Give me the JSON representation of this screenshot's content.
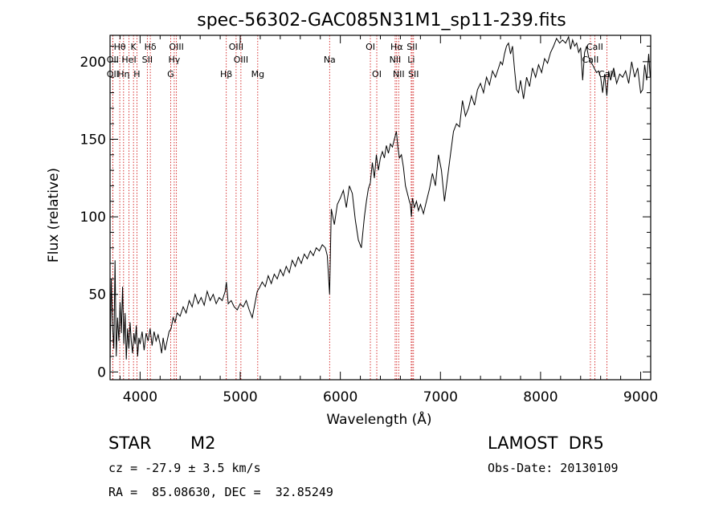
{
  "chart_data": {
    "type": "line",
    "title": "spec-56302-GAC085N31M1_sp11-239.fits",
    "xlabel": "Wavelength (Å)",
    "ylabel": "Flux (relative)",
    "xlim": [
      3700,
      9100
    ],
    "ylim": [
      -5,
      217
    ],
    "xticks": [
      4000,
      5000,
      6000,
      7000,
      8000,
      9000
    ],
    "yticks": [
      0,
      50,
      100,
      150,
      200
    ],
    "grid": false,
    "line_color": "#000000",
    "marker_color": "#cc0000",
    "series": [
      {
        "x": [
          3700,
          3712,
          3725,
          3738,
          3750,
          3762,
          3775,
          3788,
          3800,
          3812,
          3825,
          3838,
          3850,
          3862,
          3875,
          3888,
          3900,
          3912,
          3925,
          3938,
          3950,
          3962,
          3975,
          3988,
          4000,
          4020,
          4040,
          4060,
          4080,
          4100,
          4120,
          4140,
          4160,
          4180,
          4200,
          4215,
          4230,
          4250,
          4270,
          4290,
          4310,
          4330,
          4350,
          4370,
          4400,
          4430,
          4460,
          4490,
          4520,
          4550,
          4580,
          4610,
          4640,
          4670,
          4700,
          4730,
          4760,
          4790,
          4820,
          4850,
          4862,
          4880,
          4910,
          4940,
          4970,
          5000,
          5030,
          5060,
          5090,
          5120,
          5150,
          5170,
          5190,
          5220,
          5250,
          5280,
          5310,
          5340,
          5370,
          5400,
          5430,
          5460,
          5490,
          5520,
          5550,
          5580,
          5610,
          5640,
          5670,
          5700,
          5730,
          5760,
          5790,
          5820,
          5850,
          5870,
          5893,
          5910,
          5940,
          5970,
          6000,
          6030,
          6060,
          6090,
          6120,
          6150,
          6180,
          6210,
          6240,
          6260,
          6280,
          6300,
          6320,
          6340,
          6360,
          6380,
          6400,
          6420,
          6440,
          6460,
          6480,
          6500,
          6520,
          6540,
          6560,
          6575,
          6590,
          6610,
          6630,
          6650,
          6670,
          6690,
          6700,
          6710,
          6720,
          6740,
          6760,
          6780,
          6800,
          6830,
          6860,
          6890,
          6920,
          6950,
          6980,
          7010,
          7040,
          7070,
          7100,
          7130,
          7160,
          7190,
          7220,
          7250,
          7280,
          7310,
          7340,
          7370,
          7400,
          7430,
          7460,
          7490,
          7520,
          7550,
          7580,
          7600,
          7620,
          7640,
          7660,
          7680,
          7700,
          7720,
          7740,
          7760,
          7780,
          7800,
          7830,
          7860,
          7890,
          7920,
          7950,
          7980,
          8010,
          8040,
          8070,
          8100,
          8130,
          8160,
          8190,
          8220,
          8250,
          8280,
          8300,
          8320,
          8340,
          8360,
          8380,
          8400,
          8420,
          8440,
          8460,
          8480,
          8500,
          8520,
          8542,
          8560,
          8580,
          8600,
          8620,
          8640,
          8662,
          8680,
          8700,
          8730,
          8760,
          8790,
          8820,
          8850,
          8880,
          8910,
          8940,
          8970,
          9000,
          9020,
          9040,
          9060,
          9080,
          9095
        ],
        "y": [
          5,
          60,
          30,
          15,
          72,
          10,
          35,
          20,
          45,
          25,
          55,
          18,
          38,
          8,
          28,
          15,
          32,
          20,
          12,
          25,
          18,
          30,
          10,
          22,
          18,
          26,
          14,
          25,
          20,
          28,
          17,
          26,
          20,
          24,
          18,
          12,
          22,
          14,
          20,
          26,
          28,
          35,
          32,
          38,
          36,
          42,
          38,
          46,
          42,
          50,
          44,
          48,
          43,
          52,
          46,
          50,
          44,
          48,
          46,
          52,
          58,
          44,
          46,
          42,
          40,
          44,
          42,
          46,
          40,
          35,
          45,
          52,
          54,
          58,
          55,
          62,
          57,
          63,
          60,
          66,
          62,
          68,
          64,
          72,
          68,
          74,
          70,
          76,
          73,
          78,
          75,
          80,
          78,
          82,
          80,
          75,
          50,
          105,
          95,
          108,
          112,
          117,
          106,
          120,
          115,
          98,
          85,
          80,
          100,
          110,
          118,
          122,
          135,
          125,
          140,
          130,
          138,
          142,
          138,
          146,
          141,
          147,
          145,
          150,
          155,
          145,
          138,
          140,
          132,
          120,
          115,
          110,
          108,
          100,
          112,
          106,
          110,
          104,
          108,
          102,
          110,
          118,
          128,
          120,
          140,
          130,
          110,
          125,
          140,
          155,
          160,
          158,
          175,
          165,
          170,
          178,
          172,
          182,
          186,
          180,
          190,
          185,
          194,
          190,
          196,
          200,
          198,
          205,
          210,
          212,
          205,
          210,
          195,
          182,
          180,
          188,
          176,
          190,
          184,
          196,
          190,
          198,
          193,
          202,
          199,
          206,
          210,
          215,
          212,
          214,
          212,
          216,
          208,
          214,
          210,
          212,
          206,
          209,
          188,
          206,
          210,
          203,
          200,
          198,
          195,
          193,
          194,
          190,
          180,
          192,
          178,
          194,
          188,
          196,
          186,
          192,
          190,
          194,
          186,
          200,
          190,
          196,
          180,
          182,
          198,
          188,
          205,
          190
        ],
        "y_range_note": null
      }
    ],
    "lines": [
      {
        "label": "Hθ",
        "x": 3797,
        "row": 0
      },
      {
        "label": "OII",
        "x": 3727,
        "row": 1
      },
      {
        "label": "OII",
        "x": 3727,
        "row": 2
      },
      {
        "label": "K",
        "x": 3934,
        "row": 0
      },
      {
        "label": "HeI",
        "x": 3889,
        "row": 1
      },
      {
        "label": "Hη",
        "x": 3835,
        "row": 2
      },
      {
        "label": "H",
        "x": 3968,
        "row": 2
      },
      {
        "label": "Hδ",
        "x": 4102,
        "row": 0
      },
      {
        "label": "SII",
        "x": 4072,
        "row": 1
      },
      {
        "label": "OIII",
        "x": 4363,
        "row": 0
      },
      {
        "label": "Hγ",
        "x": 4341,
        "row": 1
      },
      {
        "label": "G",
        "x": 4305,
        "row": 2
      },
      {
        "label": "OIII",
        "x": 4959,
        "row": 0
      },
      {
        "label": "OIII",
        "x": 5007,
        "row": 1
      },
      {
        "label": "Hβ",
        "x": 4861,
        "row": 2
      },
      {
        "label": "Mg",
        "x": 5175,
        "row": 2
      },
      {
        "label": "Na",
        "x": 5893,
        "row": 1
      },
      {
        "label": "OI",
        "x": 6300,
        "row": 0
      },
      {
        "label": "OI",
        "x": 6364,
        "row": 2
      },
      {
        "label": "Hα",
        "x": 6563,
        "row": 0
      },
      {
        "label": "NII",
        "x": 6548,
        "row": 1
      },
      {
        "label": "NII",
        "x": 6583,
        "row": 2
      },
      {
        "label": "SII",
        "x": 6717,
        "row": 0
      },
      {
        "label": "Li",
        "x": 6708,
        "row": 1
      },
      {
        "label": "SII",
        "x": 6731,
        "row": 2
      },
      {
        "label": "CaII",
        "x": 8542,
        "row": 0
      },
      {
        "label": "CaII",
        "x": 8498,
        "row": 1
      },
      {
        "label": "CaII",
        "x": 8662,
        "row": 2
      }
    ]
  },
  "info": {
    "object_class": "STAR",
    "subclass": "M2",
    "survey": "LAMOST  DR5",
    "cz": "cz = -27.9 ± 3.5 km/s",
    "obs_date": "Obs-Date: 20130109",
    "coords": "RA =  85.08630, DEC =  32.85249"
  }
}
